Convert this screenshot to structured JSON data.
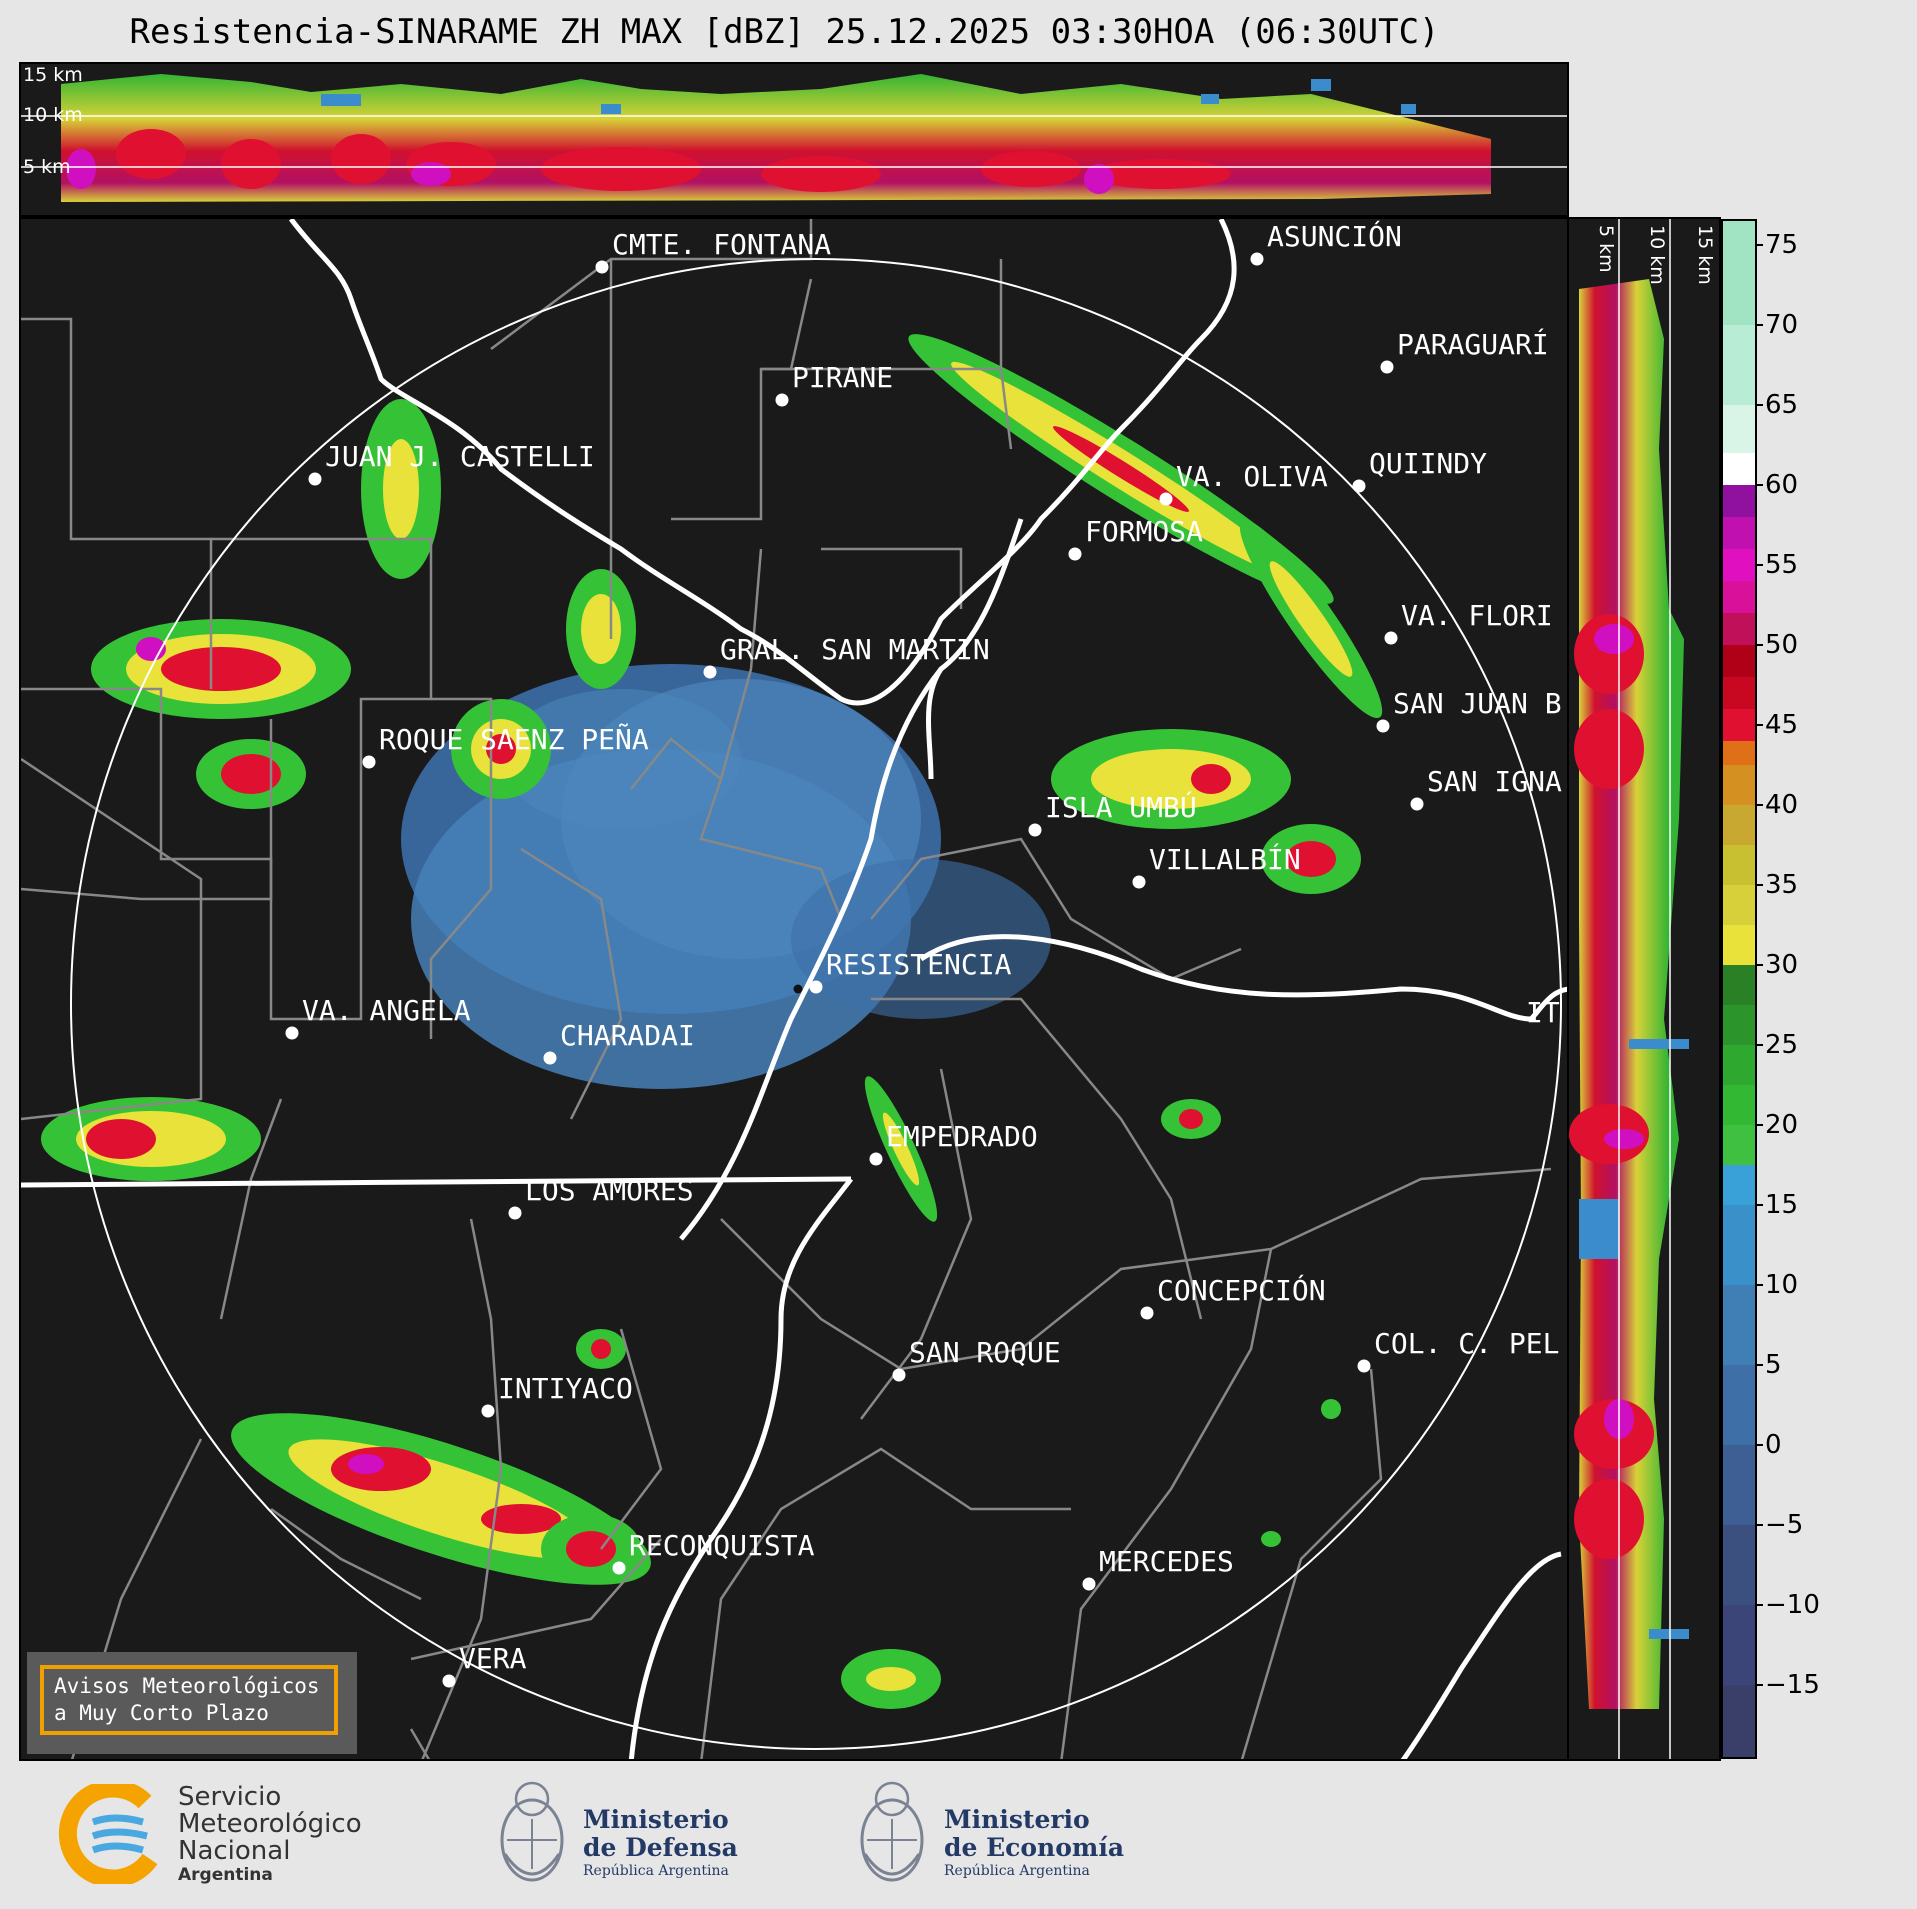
{
  "title": "Resistencia-SINARAME ZH MAX [dBZ] 25.12.2025 03:30HOA (06:30UTC)",
  "top_panel": {
    "height_labels": [
      "15 km",
      "10 km",
      "5 km"
    ]
  },
  "side_panel": {
    "height_labels": [
      "5 km",
      "10 km",
      "15 km"
    ]
  },
  "colorbar": {
    "unit": "dBZ",
    "ticks": [
      "75",
      "70",
      "65",
      "60",
      "55",
      "50",
      "45",
      "40",
      "35",
      "30",
      "25",
      "20",
      "15",
      "10",
      "5",
      "0",
      "−5",
      "−10",
      "−15"
    ],
    "tick_values": [
      75,
      70,
      65,
      60,
      55,
      50,
      45,
      40,
      35,
      30,
      25,
      20,
      15,
      10,
      5,
      0,
      -5,
      -10,
      -15
    ],
    "range": [
      -19.5,
      76.5
    ]
  },
  "cities": [
    {
      "name": "CMTE. FONTANA"
    },
    {
      "name": "ASUNCIÓN"
    },
    {
      "name": "PARAGUARÍ"
    },
    {
      "name": "PIRANE"
    },
    {
      "name": "JUAN J. CASTELLI"
    },
    {
      "name": "VA. OLIVA"
    },
    {
      "name": "QUIINDY"
    },
    {
      "name": "FORMOSA"
    },
    {
      "name": "VA. FLORI"
    },
    {
      "name": "GRAL. SAN MARTIN"
    },
    {
      "name": "SAN JUAN B"
    },
    {
      "name": "ROQUE SAENZ PEÑA"
    },
    {
      "name": "SAN IGNA"
    },
    {
      "name": "ISLA UMBÚ"
    },
    {
      "name": "VILLALBÍN"
    },
    {
      "name": "RESISTENCIA"
    },
    {
      "name": "VA. ANGELA"
    },
    {
      "name": "CHARADAI"
    },
    {
      "name": "IT"
    },
    {
      "name": "EMPEDRADO"
    },
    {
      "name": "LOS AMORES"
    },
    {
      "name": "CONCEPCIÓN"
    },
    {
      "name": "SAN ROQUE"
    },
    {
      "name": "COL. C. PEL"
    },
    {
      "name": "INTIYACO"
    },
    {
      "name": "RECONQUISTA"
    },
    {
      "name": "MERCEDES"
    },
    {
      "name": "VERA"
    }
  ],
  "warning": {
    "line1": "Avisos Meteorológicos",
    "line2": "a Muy Corto Plazo"
  },
  "footer": {
    "smn": {
      "line1": "Servicio",
      "line2": "Meteorológico",
      "line3": "Nacional",
      "line4": "Argentina"
    },
    "defensa": {
      "line1": "Ministerio",
      "line2": "de Defensa",
      "line3": "República Argentina"
    },
    "economia": {
      "line1": "Ministerio",
      "line2": "de Economía",
      "line3": "República Argentina"
    }
  }
}
